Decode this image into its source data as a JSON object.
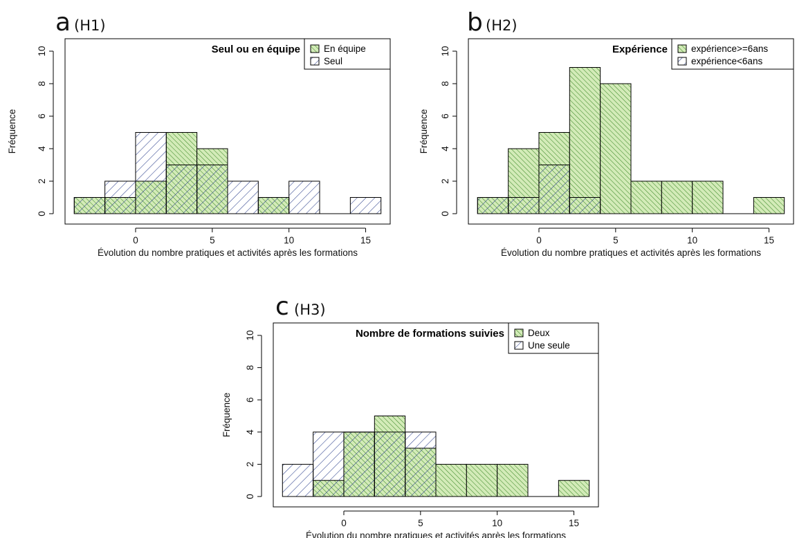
{
  "colors": {
    "green_fill": "#d3ebb8",
    "green_hatch": "#3f8a2a",
    "blue_fill": "#ffffff",
    "blue_hatch": "#2b3f8c",
    "axis": "#000000"
  },
  "chart_data": [
    {
      "type": "bar",
      "subtype": "overlaid-histogram",
      "panel_letter": "a",
      "panel_tag": "(H1)",
      "title": "Seul ou en équipe",
      "xlabel": "Évolution du nombre pratiques et activités après les formations",
      "ylabel": "Fréquence",
      "xlim": [
        -4,
        16
      ],
      "ylim": [
        0,
        10
      ],
      "x_ticks": [
        "0",
        "5",
        "10",
        "15"
      ],
      "y_ticks": [
        "0",
        "2",
        "4",
        "6",
        "8",
        "10"
      ],
      "bin_edges": [
        -4,
        -2,
        0,
        2,
        4,
        6,
        8,
        10,
        12,
        14,
        16
      ],
      "legend_position": "top-right",
      "series": [
        {
          "name": "En équipe",
          "style": "green",
          "counts": [
            1,
            1,
            2,
            5,
            4,
            0,
            1,
            0,
            0,
            0
          ]
        },
        {
          "name": "Seul",
          "style": "blue",
          "counts": [
            1,
            2,
            5,
            3,
            3,
            2,
            1,
            2,
            0,
            1
          ]
        }
      ]
    },
    {
      "type": "bar",
      "subtype": "overlaid-histogram",
      "panel_letter": "b",
      "panel_tag": "(H2)",
      "title": "Expérience",
      "xlabel": "Évolution du nombre pratiques et activités après les formations",
      "ylabel": "Fréquence",
      "xlim": [
        -4,
        16
      ],
      "ylim": [
        0,
        10
      ],
      "x_ticks": [
        "0",
        "5",
        "10",
        "15"
      ],
      "y_ticks": [
        "0",
        "2",
        "4",
        "6",
        "8",
        "10"
      ],
      "bin_edges": [
        -4,
        -2,
        0,
        2,
        4,
        6,
        8,
        10,
        12,
        14,
        16
      ],
      "legend_position": "top-right",
      "series": [
        {
          "name": "expérience>=6ans",
          "style": "green",
          "counts": [
            1,
            4,
            5,
            9,
            8,
            2,
            2,
            2,
            0,
            1
          ]
        },
        {
          "name": "expérience<6ans",
          "style": "blue",
          "counts": [
            1,
            1,
            3,
            1,
            0,
            0,
            0,
            0,
            0,
            0
          ]
        }
      ]
    },
    {
      "type": "bar",
      "subtype": "overlaid-histogram",
      "panel_letter": "c",
      "panel_tag": "(H3)",
      "title": "Nombre de formations suivies",
      "xlabel": "Évolution du nombre pratiques et activités après les formations",
      "ylabel": "Fréquence",
      "xlim": [
        -4,
        16
      ],
      "ylim": [
        0,
        10
      ],
      "x_ticks": [
        "0",
        "5",
        "10",
        "15"
      ],
      "y_ticks": [
        "0",
        "2",
        "4",
        "6",
        "8",
        "10"
      ],
      "bin_edges": [
        -4,
        -2,
        0,
        2,
        4,
        6,
        8,
        10,
        12,
        14,
        16
      ],
      "legend_position": "top-right",
      "series": [
        {
          "name": "Deux",
          "style": "green",
          "counts": [
            0,
            1,
            4,
            5,
            3,
            2,
            2,
            2,
            0,
            1
          ]
        },
        {
          "name": "Une seule",
          "style": "blue",
          "counts": [
            2,
            4,
            4,
            4,
            4,
            0,
            0,
            0,
            0,
            0
          ]
        }
      ]
    }
  ]
}
